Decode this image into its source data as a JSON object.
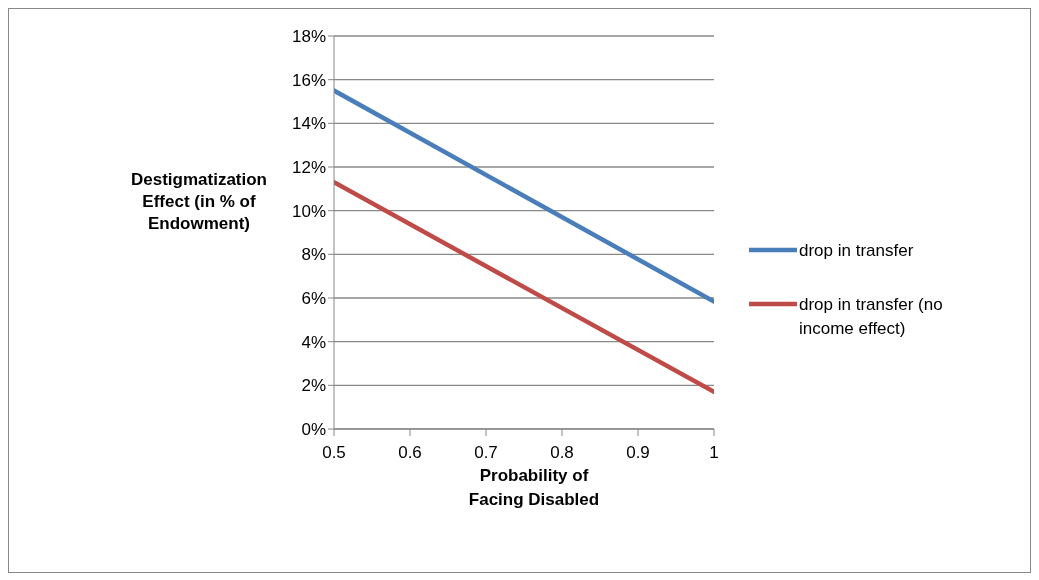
{
  "chart_data": {
    "type": "line",
    "xlabel": "Probability of Facing Disabled",
    "ylabel": "Destigmatization Effect (in % of Endowment)",
    "x": [
      0.5,
      1
    ],
    "series": [
      {
        "name": "drop in transfer",
        "color": "#4a7ebb",
        "values": [
          15.5,
          5.84
        ]
      },
      {
        "name": "drop in transfer (no income effect)",
        "color": "#be4b48",
        "values": [
          11.3,
          1.7
        ]
      }
    ],
    "xlim": [
      0.5,
      1
    ],
    "xticks": [
      0.5,
      0.6,
      0.7,
      0.8,
      0.9,
      1
    ],
    "ylim": [
      0,
      18
    ],
    "yticks": [
      {
        "value": 0,
        "label": "0%"
      },
      {
        "value": 2,
        "label": "2%"
      },
      {
        "value": 4,
        "label": "4%"
      },
      {
        "value": 6,
        "label": "6%"
      },
      {
        "value": 8,
        "label": "8%"
      },
      {
        "value": 10,
        "label": "10%"
      },
      {
        "value": 12,
        "label": "12%"
      },
      {
        "value": 14,
        "label": "14%"
      },
      {
        "value": 16,
        "label": "16%"
      },
      {
        "value": 18,
        "label": "18%"
      }
    ],
    "grid": "y",
    "legend": "right"
  }
}
